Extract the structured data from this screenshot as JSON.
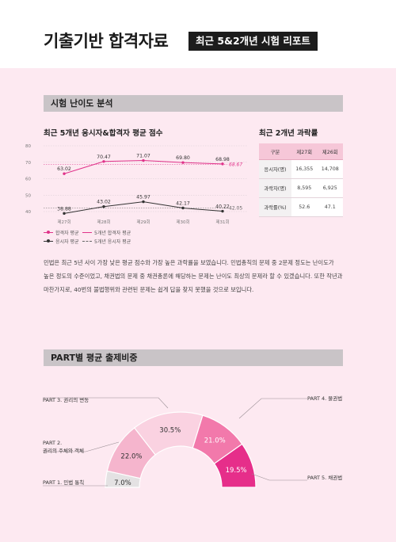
{
  "header": {
    "title": "기출기반 합격자료",
    "badge": "최근 5&2개년 시험 리포트"
  },
  "section1": {
    "title": "시험 난이도 분석",
    "chart_title": "최근 5개년 응시자&합격자 평균 점수",
    "table_title": "최근 2개년 과락률"
  },
  "chart_data": [
    {
      "type": "line",
      "title": "최근 5개년 응시자&합격자 평균 점수",
      "categories": [
        "제27회",
        "제28회",
        "제29회",
        "제30회",
        "제31회"
      ],
      "ylim": [
        40,
        80
      ],
      "yticks": [
        40,
        50,
        60,
        70,
        80
      ],
      "grid": true,
      "legend_position": "bottom-left",
      "series": [
        {
          "name": "합격자 평균",
          "values": [
            63.02,
            70.47,
            71.07,
            69.8,
            68.98
          ],
          "color": "#e0338a"
        },
        {
          "name": "응시자 평균",
          "values": [
            38.88,
            43.02,
            45.97,
            42.17,
            40.22
          ],
          "color": "#333333"
        }
      ],
      "reference_lines": [
        {
          "name": "5개년 합격자 평균",
          "value": 68.67,
          "label": "68.67",
          "color": "#e0338a"
        },
        {
          "name": "5개년 응시자 평균",
          "value": 42.05,
          "label": "42.05",
          "color": "#666666"
        }
      ]
    },
    {
      "type": "table",
      "title": "최근 2개년 과락률",
      "columns": [
        "구분",
        "제27회",
        "제26회"
      ],
      "rows": [
        [
          "응시자(명)",
          "16,355",
          "14,708"
        ],
        [
          "과락자(명)",
          "8,595",
          "6,925"
        ],
        [
          "과락률(%)",
          "52.6",
          "47.1"
        ]
      ]
    },
    {
      "type": "pie",
      "title": "PART별 평균 출제비중",
      "categories": [
        "PART 1. 민법 통칙",
        "PART 2. 권리의 주체와 객체",
        "PART 3. 권리의 변동",
        "PART 4. 물권법",
        "PART 5. 채권법"
      ],
      "values": [
        7.0,
        22.0,
        30.5,
        21.0,
        19.5
      ],
      "value_labels": [
        "7.0%",
        "22.0%",
        "30.5%",
        "21.0%",
        "19.5%"
      ],
      "colors": [
        "#e4e2e3",
        "#f5b5cd",
        "#fad2e1",
        "#f279ab",
        "#e62e8a"
      ]
    }
  ],
  "description": "민법은 최근 5년 사이 가장 낮은 평균 점수와 가장 높은 과락률을 보였습니다. 민법총칙의 문제 중 2문제 정도는 난이도가 높은 정도의 수준이었고, 채권법의 문제 중 채권총론에 해당하는 문제는 난이도 최상의 문제라 할 수 있겠습니다. 또한 작년과 마찬가지로, 40번의 불법행위와 관련된 문제는 쉽게 답을 찾지 못했을 것으로 보입니다.",
  "section2": {
    "title": "PART별 평균 출제비중",
    "labels": {
      "part1": "PART 1. 민법 통칙",
      "part2_line1": "PART 2.",
      "part2_line2": "권리의 주체와 객체",
      "part3": "PART 3. 권리의 변동",
      "part4": "PART 4. 물권법",
      "part5": "PART 5. 채권법"
    }
  }
}
